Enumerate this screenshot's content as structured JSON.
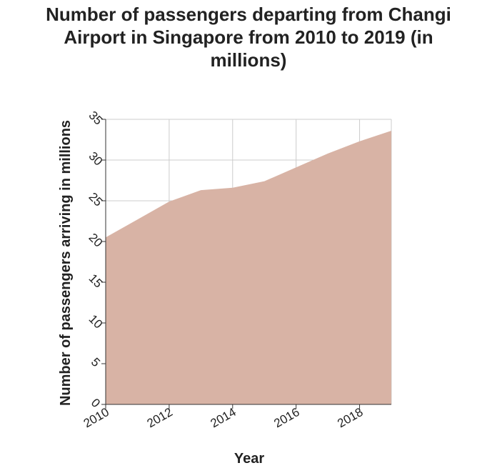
{
  "chart_data": {
    "type": "area",
    "title": "Number of passengers departing from Changi Airport in Singapore from 2010 to 2019 (in millions)",
    "title_lines": [
      "Number of passengers departing from Changi",
      "Airport in Singapore from 2010 to 2019 (in",
      "millions)"
    ],
    "xlabel": "Year",
    "ylabel": "Number of passengers arriving in millions",
    "x": [
      2010,
      2011,
      2012,
      2013,
      2014,
      2015,
      2016,
      2017,
      2018,
      2019
    ],
    "values": [
      20.5,
      22.7,
      24.9,
      26.3,
      26.6,
      27.4,
      29.1,
      30.8,
      32.3,
      33.6
    ],
    "xlim": [
      2010,
      2019
    ],
    "ylim": [
      0,
      35
    ],
    "x_ticks": [
      2010,
      2012,
      2014,
      2016,
      2018
    ],
    "y_ticks": [
      0,
      5,
      10,
      15,
      20,
      25,
      30,
      35
    ],
    "grid": true,
    "legend": "none",
    "colors": {
      "area": "#d8b3a5",
      "grid": "#cccccc",
      "axis": "#333333"
    }
  }
}
